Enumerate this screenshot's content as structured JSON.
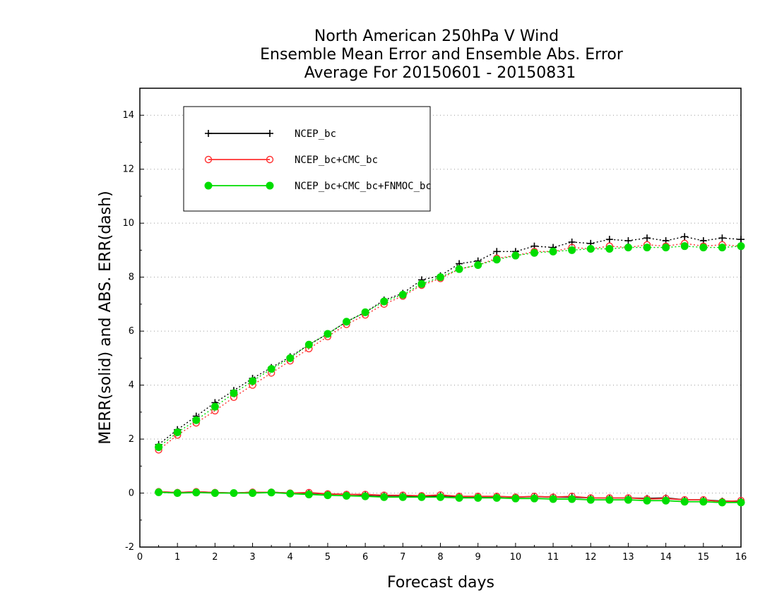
{
  "chart_data": {
    "type": "line",
    "title": [
      "North American 250hPa V Wind",
      "Ensemble Mean Error and Ensemble Abs. Error",
      "Average For 20150601 - 20150831"
    ],
    "xlabel": "Forecast days",
    "ylabel": "MERR(solid) and ABS. ERR(dash)",
    "xlim": [
      0,
      16
    ],
    "ylim": [
      -2,
      15
    ],
    "xticks": [
      "0",
      "1",
      "2",
      "3",
      "4",
      "5",
      "6",
      "7",
      "8",
      "9",
      "10",
      "11",
      "12",
      "13",
      "14",
      "15",
      "16"
    ],
    "yticks": [
      "-2",
      "0",
      "2",
      "4",
      "6",
      "8",
      "10",
      "12",
      "14"
    ],
    "grid": "horizontal dotted",
    "legend_position": "top-left",
    "x": [
      0.5,
      1,
      1.5,
      2,
      2.5,
      3,
      3.5,
      4,
      4.5,
      5,
      5.5,
      6,
      6.5,
      7,
      7.5,
      8,
      8.5,
      9,
      9.5,
      10,
      10.5,
      11,
      11.5,
      12,
      12.5,
      13,
      13.5,
      14,
      14.5,
      15,
      15.5,
      16
    ],
    "series": [
      {
        "name": "NCEP_bc",
        "color": "#000000",
        "marker": "plus",
        "abs_err": [
          1.8,
          2.35,
          2.85,
          3.35,
          3.8,
          4.25,
          4.65,
          5.05,
          5.5,
          5.9,
          6.35,
          6.7,
          7.15,
          7.4,
          7.9,
          8.05,
          8.5,
          8.6,
          8.95,
          8.95,
          9.15,
          9.1,
          9.3,
          9.25,
          9.4,
          9.35,
          9.45,
          9.35,
          9.5,
          9.35,
          9.45,
          9.4
        ],
        "mean_err": [
          0.05,
          0.02,
          0.05,
          0.02,
          0.0,
          0.03,
          0.03,
          0.0,
          0.0,
          -0.03,
          -0.05,
          -0.07,
          -0.1,
          -0.1,
          -0.12,
          -0.1,
          -0.13,
          -0.13,
          -0.13,
          -0.15,
          -0.13,
          -0.15,
          -0.15,
          -0.18,
          -0.18,
          -0.18,
          -0.2,
          -0.18,
          -0.25,
          -0.25,
          -0.3,
          -0.3
        ]
      },
      {
        "name": "NCEP_bc+CMC_bc",
        "color": "#ff3030",
        "marker": "open-circle",
        "abs_err": [
          1.6,
          2.15,
          2.6,
          3.05,
          3.55,
          4.0,
          4.45,
          4.9,
          5.35,
          5.8,
          6.25,
          6.6,
          7.0,
          7.3,
          7.7,
          7.95,
          8.3,
          8.45,
          8.7,
          8.8,
          8.95,
          8.95,
          9.1,
          9.05,
          9.15,
          9.1,
          9.2,
          9.15,
          9.25,
          9.15,
          9.2,
          9.15
        ],
        "mean_err": [
          0.05,
          0.02,
          0.05,
          0.02,
          0.0,
          0.03,
          0.03,
          0.0,
          0.02,
          -0.03,
          -0.05,
          -0.05,
          -0.08,
          -0.08,
          -0.1,
          -0.07,
          -0.12,
          -0.12,
          -0.12,
          -0.15,
          -0.12,
          -0.15,
          -0.12,
          -0.18,
          -0.18,
          -0.18,
          -0.22,
          -0.2,
          -0.25,
          -0.25,
          -0.32,
          -0.28
        ]
      },
      {
        "name": "NCEP_bc+CMC_bc+FNMOC_bc",
        "color": "#00dd00",
        "marker": "filled-circle",
        "abs_err": [
          1.7,
          2.25,
          2.7,
          3.2,
          3.7,
          4.15,
          4.6,
          5.0,
          5.5,
          5.9,
          6.35,
          6.7,
          7.1,
          7.35,
          7.75,
          8.0,
          8.3,
          8.45,
          8.65,
          8.8,
          8.9,
          8.95,
          9.0,
          9.05,
          9.05,
          9.1,
          9.1,
          9.1,
          9.15,
          9.1,
          9.1,
          9.15
        ],
        "mean_err": [
          0.03,
          0.0,
          0.02,
          0.0,
          0.0,
          0.0,
          0.02,
          -0.02,
          -0.05,
          -0.08,
          -0.1,
          -0.12,
          -0.15,
          -0.15,
          -0.15,
          -0.15,
          -0.18,
          -0.18,
          -0.18,
          -0.2,
          -0.2,
          -0.22,
          -0.22,
          -0.25,
          -0.25,
          -0.25,
          -0.28,
          -0.28,
          -0.32,
          -0.32,
          -0.35,
          -0.35
        ]
      }
    ]
  }
}
